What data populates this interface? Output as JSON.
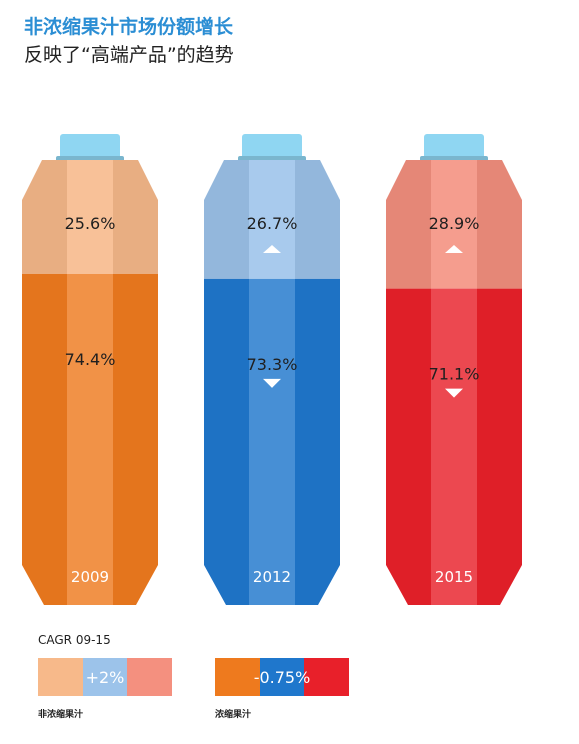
{
  "header": {
    "title": "非浓缩果汁市场份额增长",
    "subtitle": "反映了“高端产品”的趋势"
  },
  "chart_data": {
    "type": "bar",
    "stacked": true,
    "categories": [
      "2009",
      "2012",
      "2015"
    ],
    "series": [
      {
        "values": [
          25.6,
          26.7,
          28.9
        ],
        "labels": [
          "25.6%",
          "26.7%",
          "28.9%"
        ]
      },
      {
        "values": [
          74.4,
          73.3,
          71.1
        ],
        "labels": [
          "74.4%",
          "73.3%",
          "71.1%"
        ]
      }
    ],
    "trend_arrows": {
      "top": [
        "",
        "up",
        "up"
      ],
      "bottom": [
        "",
        "down",
        "down"
      ]
    },
    "colors": {
      "2009": {
        "dark": "#ee7a1e",
        "light": "#f7b98a"
      },
      "2012": {
        "dark": "#1f77cc",
        "light": "#9cc3ea"
      },
      "2015": {
        "dark": "#e8202a",
        "light": "#f4907f"
      },
      "cap": "#8fd6f2"
    }
  },
  "legend": {
    "cagr_label": "CAGR 09-15",
    "nfc": {
      "value": "+2%",
      "name": "非浓缩果汁",
      "colors": [
        "#f7b98a",
        "#9cc3ea",
        "#f4907f"
      ]
    },
    "fc": {
      "value": "-0.75%",
      "name": "浓缩果汁",
      "colors": [
        "#ee7a1e",
        "#1f77cc",
        "#e8202a"
      ]
    }
  }
}
